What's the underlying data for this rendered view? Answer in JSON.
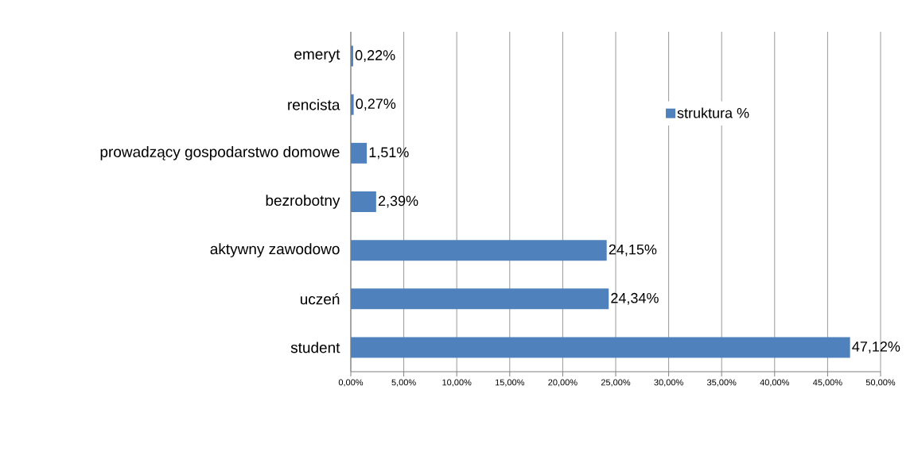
{
  "chart_data": {
    "type": "bar",
    "orientation": "horizontal",
    "categories": [
      "emeryt",
      "rencista",
      "prowadzący gospodarstwo domowe",
      "bezrobotny",
      "aktywny zawodowo",
      "uczeń",
      "student"
    ],
    "series": [
      {
        "name": "struktura %",
        "color": "#4f81bd",
        "values": [
          0.22,
          0.27,
          1.51,
          2.39,
          24.15,
          24.34,
          47.12
        ],
        "value_labels": [
          "0,22%",
          "0,27%",
          "1,51%",
          "2,39%",
          "24,15%",
          "24,34%",
          "47,12%"
        ]
      }
    ],
    "xlim": [
      0,
      50
    ],
    "xticks": [
      {
        "value": 0,
        "label": "0,00%"
      },
      {
        "value": 5,
        "label": "5,00%"
      },
      {
        "value": 10,
        "label": "10,00%"
      },
      {
        "value": 15,
        "label": "15,00%"
      },
      {
        "value": 20,
        "label": "20,00%"
      },
      {
        "value": 25,
        "label": "25,00%"
      },
      {
        "value": 30,
        "label": "30,00%"
      },
      {
        "value": 35,
        "label": "35,00%"
      },
      {
        "value": 40,
        "label": "40,00%"
      },
      {
        "value": 45,
        "label": "45,00%"
      },
      {
        "value": 50,
        "label": "50,00%"
      }
    ],
    "grid": "x",
    "legend": "top right"
  }
}
